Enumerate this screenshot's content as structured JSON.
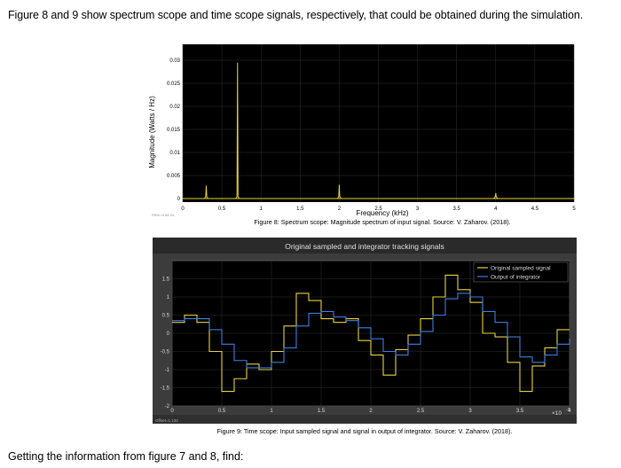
{
  "intro_text": "Figure 8 and 9 show spectrum scope and time scope signals, respectively, that could be obtained during the simulation.",
  "closing_text": "Getting the information from figure 7 and 8, find:",
  "colors": {
    "plot_bg": "#000000",
    "frame": "#4a4a4a",
    "grid": "#2e2e2e",
    "yellow": "#e8d23a",
    "blue": "#3f7de0",
    "tick": "#d8d8d8",
    "caption": "#000000"
  },
  "chart_data": [
    {
      "type": "line",
      "title": "",
      "xlabel": "Frequency (kHz)",
      "ylabel": "Magnitude (Watts / Hz)",
      "xlim": [
        0,
        5
      ],
      "ylim": [
        0,
        0.03
      ],
      "grid": true,
      "x_ticks": [
        "0",
        "0.5",
        "1",
        "1.5",
        "2",
        "2.5",
        "3",
        "3.5",
        "4",
        "4.5",
        "5"
      ],
      "y_ticks": [
        "0",
        "0.005",
        "0.01",
        "0.015",
        "0.02",
        "0.025",
        "0.03"
      ],
      "small_label": "RBW=4.88 Hz",
      "caption": "Figure 8: Spectrum scope:  Magnitude spectrum of input signal. Source: V. Zaharov. (2018).",
      "series": [
        {
          "color": "#e8d23a",
          "peaks": [
            {
              "x": 0.3,
              "y": 0.0028
            },
            {
              "x": 0.7,
              "y": 0.0295
            },
            {
              "x": 2.0,
              "y": 0.003
            },
            {
              "x": 4.0,
              "y": 0.0012
            }
          ]
        }
      ]
    },
    {
      "type": "line",
      "title": "Original sampled and integrator tracking signals",
      "xlabel": "",
      "ylabel": "",
      "xlim": [
        0,
        4
      ],
      "ylim": [
        -2,
        2
      ],
      "x_unit": "x10^-3",
      "x_multiplier": "×10",
      "x_exponent": "-3",
      "grid": true,
      "x_ticks": [
        "0",
        "0.5",
        "1",
        "1.5",
        "2",
        "2.5",
        "3",
        "3.5",
        "4"
      ],
      "y_ticks": [
        "-2",
        "-1.5",
        "-1",
        "-0.5",
        "0",
        "0.5",
        "1",
        "1.5"
      ],
      "small_label": "Offset=1.132",
      "caption": "Figure 9: Time scope: Input sampled signal and signal in output of integrator.  Source: V. Zaharov. (2018).",
      "legend": "top-right",
      "series": [
        {
          "name": "Original sampled signal",
          "color": "#e8d23a",
          "step": 0.125,
          "values": [
            0.3,
            0.5,
            0.3,
            -0.5,
            -1.6,
            -1.25,
            -0.85,
            -1.0,
            -0.5,
            0.2,
            1.1,
            0.9,
            0.4,
            0.3,
            0.4,
            -0.2,
            -0.6,
            -1.15,
            -0.45,
            -0.05,
            0.4,
            1.0,
            1.6,
            1.2,
            0.85,
            0.0,
            -0.1,
            -0.8,
            -1.6,
            -0.9,
            -0.4,
            0.1,
            0.1
          ]
        },
        {
          "name": "Output of integrator",
          "color": "#3f7de0",
          "step": 0.125,
          "values": [
            0.35,
            0.4,
            0.4,
            0.1,
            -0.3,
            -0.75,
            -0.95,
            -0.95,
            -0.8,
            -0.4,
            0.2,
            0.55,
            0.6,
            0.45,
            0.35,
            0.15,
            -0.15,
            -0.5,
            -0.6,
            -0.3,
            0.05,
            0.5,
            0.95,
            1.1,
            1.0,
            0.6,
            0.3,
            -0.1,
            -0.65,
            -0.8,
            -0.6,
            -0.3,
            -0.15
          ]
        }
      ]
    }
  ]
}
